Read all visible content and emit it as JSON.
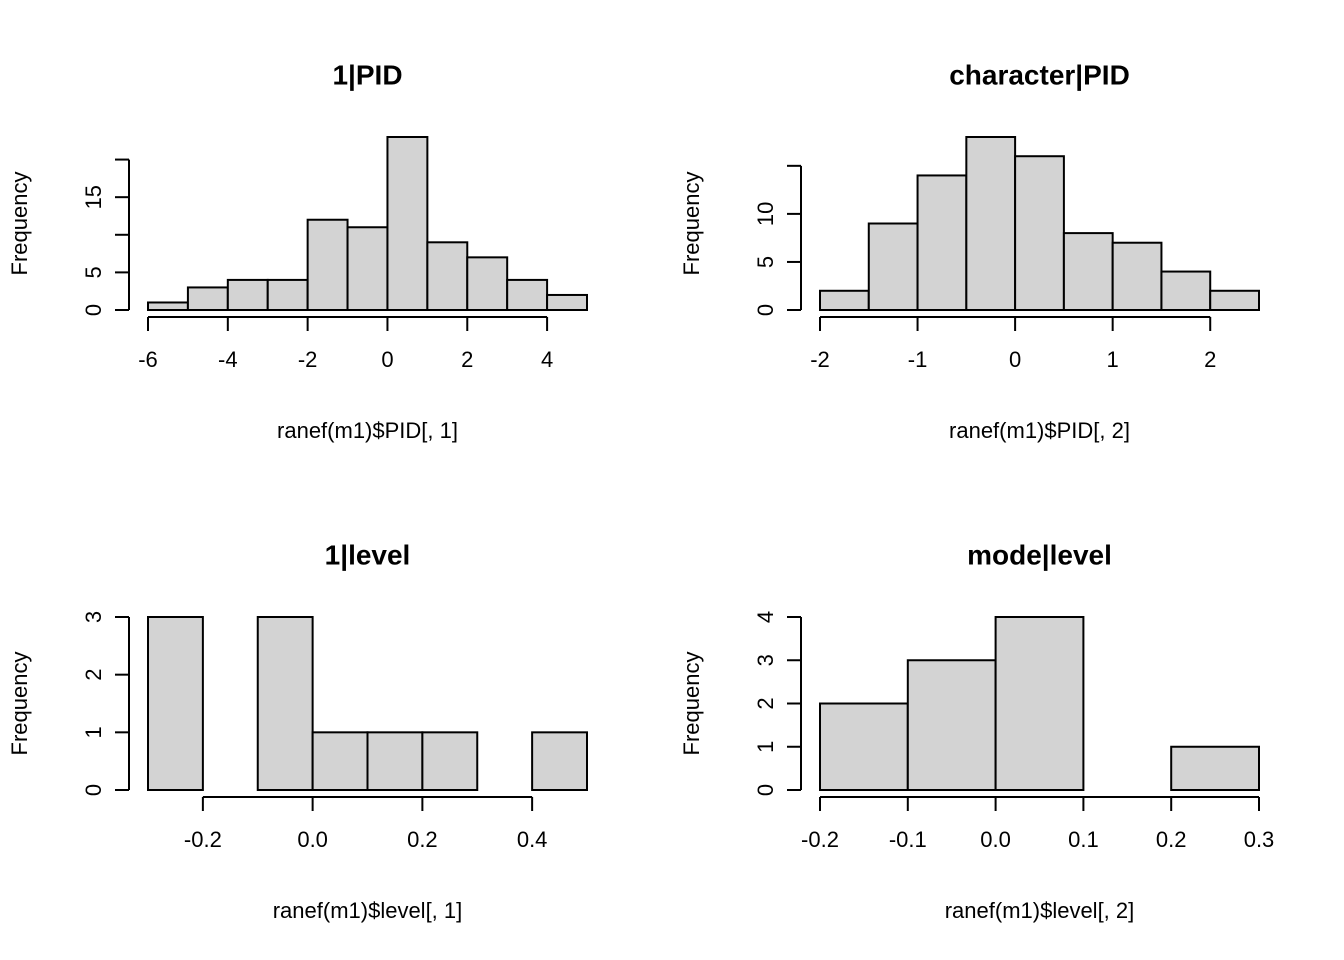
{
  "chart_data": [
    {
      "type": "bar",
      "subtype": "histogram",
      "title": "1|PID",
      "xlabel": "ranef(m1)$PID[, 1]",
      "ylabel": "Frequency",
      "breaks": [
        -6,
        -5,
        -4,
        -3,
        -2,
        -1,
        0,
        1,
        2,
        3,
        4,
        5
      ],
      "counts": [
        1,
        3,
        4,
        4,
        12,
        11,
        23,
        9,
        7,
        4,
        2
      ],
      "xlim": [
        -6,
        5
      ],
      "ylim": [
        0,
        23
      ],
      "xticks": [
        -6,
        -4,
        -2,
        0,
        2,
        4
      ],
      "xtick_labels": [
        "-6",
        "-4",
        "-2",
        "0",
        "2",
        "4"
      ],
      "yticks": [
        0,
        5,
        10,
        15,
        20
      ],
      "ytick_labels": [
        "0",
        "5",
        "",
        "15",
        ""
      ],
      "bar_color": "#d3d3d3",
      "grid": false
    },
    {
      "type": "bar",
      "subtype": "histogram",
      "title": "character|PID",
      "xlabel": "ranef(m1)$PID[, 2]",
      "ylabel": "Frequency",
      "breaks": [
        -2,
        -1.5,
        -1,
        -0.5,
        0,
        0.5,
        1,
        1.5,
        2,
        2.5
      ],
      "counts": [
        2,
        9,
        14,
        18,
        16,
        8,
        7,
        4,
        2
      ],
      "xlim": [
        -2,
        2.5
      ],
      "ylim": [
        0,
        18
      ],
      "xticks": [
        -2,
        -1,
        0,
        1,
        2
      ],
      "xtick_labels": [
        "-2",
        "-1",
        "0",
        "1",
        "2"
      ],
      "yticks": [
        0,
        5,
        10,
        15
      ],
      "ytick_labels": [
        "0",
        "5",
        "10",
        ""
      ],
      "bar_color": "#d3d3d3",
      "grid": false
    },
    {
      "type": "bar",
      "subtype": "histogram",
      "title": "1|level",
      "xlabel": "ranef(m1)$level[, 1]",
      "ylabel": "Frequency",
      "breaks": [
        -0.3,
        -0.2,
        -0.1,
        0.0,
        0.1,
        0.2,
        0.3,
        0.4,
        0.5
      ],
      "counts": [
        3,
        0,
        3,
        1,
        1,
        1,
        0,
        1
      ],
      "xlim": [
        -0.3,
        0.5
      ],
      "ylim": [
        0,
        3
      ],
      "xticks": [
        -0.2,
        0.0,
        0.2,
        0.4
      ],
      "xtick_labels": [
        "-0.2",
        "0.0",
        "0.2",
        "0.4"
      ],
      "yticks": [
        0,
        1,
        2,
        3
      ],
      "ytick_labels": [
        "0",
        "1",
        "2",
        "3"
      ],
      "bar_color": "#d3d3d3",
      "grid": false
    },
    {
      "type": "bar",
      "subtype": "histogram",
      "title": "mode|level",
      "xlabel": "ranef(m1)$level[, 2]",
      "ylabel": "Frequency",
      "breaks": [
        -0.2,
        -0.1,
        0.0,
        0.1,
        0.2,
        0.3
      ],
      "counts": [
        2,
        3,
        4,
        0,
        1
      ],
      "xlim": [
        -0.2,
        0.3
      ],
      "ylim": [
        0,
        4
      ],
      "xticks": [
        -0.2,
        -0.1,
        0.0,
        0.1,
        0.2,
        0.3
      ],
      "xtick_labels": [
        "-0.2",
        "-0.1",
        "0.0",
        "0.1",
        "0.2",
        "0.3"
      ],
      "yticks": [
        0,
        1,
        2,
        3,
        4
      ],
      "ytick_labels": [
        "0",
        "1",
        "2",
        "3",
        "4"
      ],
      "bar_color": "#d3d3d3",
      "grid": false
    }
  ]
}
